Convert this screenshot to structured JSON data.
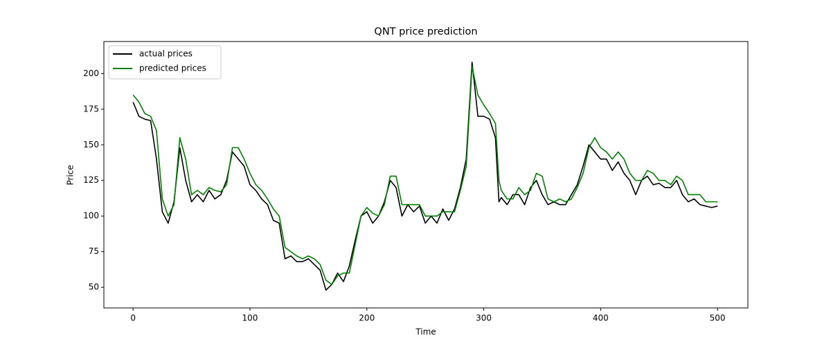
{
  "chart_data": {
    "type": "line",
    "title": "QNT price prediction",
    "x_label": "Time",
    "y_label": "Price",
    "x": [
      0,
      5,
      10,
      15,
      20,
      25,
      30,
      35,
      40,
      45,
      50,
      55,
      60,
      65,
      70,
      75,
      80,
      85,
      90,
      95,
      100,
      105,
      110,
      115,
      120,
      125,
      130,
      135,
      140,
      145,
      150,
      155,
      160,
      165,
      170,
      175,
      180,
      185,
      190,
      195,
      200,
      205,
      210,
      215,
      220,
      225,
      230,
      235,
      240,
      245,
      250,
      255,
      260,
      265,
      270,
      275,
      280,
      285,
      290,
      295,
      300,
      305,
      310,
      313,
      315,
      320,
      325,
      330,
      335,
      340,
      345,
      350,
      355,
      360,
      365,
      370,
      375,
      380,
      385,
      390,
      395,
      400,
      405,
      410,
      415,
      420,
      425,
      430,
      435,
      440,
      445,
      450,
      455,
      460,
      465,
      470,
      475,
      480,
      485,
      490,
      495,
      500
    ],
    "series": [
      {
        "name": "actual prices",
        "color": "#000000",
        "values": [
          180,
          170,
          168,
          167,
          140,
          103,
          95,
          110,
          148,
          125,
          110,
          115,
          110,
          118,
          112,
          115,
          125,
          145,
          140,
          135,
          122,
          118,
          112,
          108,
          97,
          95,
          70,
          72,
          68,
          68,
          70,
          66,
          62,
          48,
          52,
          60,
          54,
          65,
          83,
          100,
          103,
          95,
          100,
          110,
          125,
          120,
          100,
          108,
          103,
          107,
          95,
          100,
          95,
          105,
          97,
          105,
          120,
          140,
          208,
          170,
          170,
          168,
          155,
          110,
          113,
          108,
          115,
          115,
          108,
          120,
          125,
          115,
          108,
          110,
          108,
          108,
          115,
          122,
          135,
          150,
          145,
          140,
          140,
          132,
          138,
          130,
          125,
          115,
          125,
          128,
          122,
          123,
          120,
          120,
          125,
          115,
          110,
          112,
          108,
          107,
          106,
          107
        ]
      },
      {
        "name": "predicted prices",
        "color": "#008000",
        "values": [
          185,
          180,
          172,
          170,
          160,
          112,
          100,
          108,
          155,
          140,
          115,
          118,
          115,
          120,
          118,
          117,
          122,
          148,
          148,
          140,
          130,
          122,
          118,
          112,
          105,
          100,
          78,
          75,
          72,
          70,
          72,
          70,
          66,
          55,
          52,
          58,
          60,
          60,
          80,
          100,
          106,
          102,
          100,
          108,
          128,
          128,
          108,
          108,
          108,
          108,
          100,
          100,
          100,
          103,
          103,
          103,
          118,
          135,
          205,
          185,
          178,
          172,
          165,
          125,
          118,
          112,
          112,
          120,
          115,
          118,
          130,
          128,
          112,
          110,
          112,
          110,
          112,
          120,
          130,
          148,
          155,
          148,
          145,
          140,
          145,
          140,
          130,
          125,
          125,
          132,
          130,
          125,
          125,
          122,
          128,
          125,
          115,
          115,
          115,
          110,
          110,
          110
        ]
      }
    ],
    "xlim": [
      -25,
      526
    ],
    "ylim": [
      35.5,
      222.5
    ],
    "xticks": [
      0,
      100,
      200,
      300,
      400,
      500
    ],
    "yticks": [
      50,
      75,
      100,
      125,
      150,
      175,
      200
    ],
    "legend": "upper left"
  }
}
